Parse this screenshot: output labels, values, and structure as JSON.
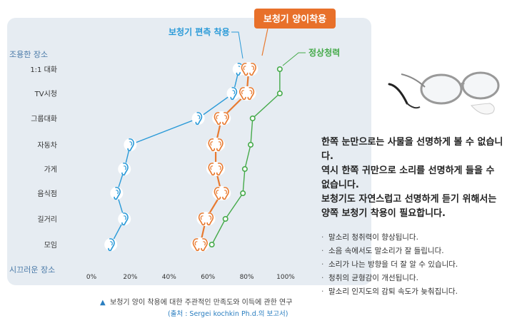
{
  "colors": {
    "panel_bg": "#e6ecf2",
    "one_ear": "#2a9ad8",
    "both_ears": "#e87a30",
    "normal": "#45aa4a",
    "label_badge": "#e8702a",
    "axis_text": "#333333",
    "end_label": "#4a7aa8"
  },
  "chart_data": {
    "type": "line",
    "ylabel_top": "조용한 장소",
    "ylabel_bottom": "시끄러운 장소",
    "categories": [
      "1:1 대화",
      "TV시청",
      "그룹대화",
      "자동차",
      "가게",
      "음식점",
      "길거리",
      "모임"
    ],
    "xticks": [
      "0%",
      "20%",
      "40%",
      "60%",
      "80%",
      "100%"
    ],
    "xlim": [
      0,
      100
    ],
    "series": [
      {
        "name": "보청기 편측 착용",
        "marker": "ear-one",
        "color": "#2a9ad8",
        "values": [
          76,
          73,
          55,
          20,
          17,
          13,
          17,
          10
        ]
      },
      {
        "name": "보청기 양이착용",
        "marker": "ear-two",
        "color": "#e87a30",
        "values": [
          81,
          80,
          67,
          64,
          64,
          67,
          59,
          56
        ]
      },
      {
        "name": "정상청력",
        "marker": "dot",
        "color": "#45aa4a",
        "values": [
          97,
          97,
          83,
          82,
          79,
          78,
          69,
          62
        ]
      }
    ]
  },
  "caption": {
    "main": "보청기 양이 착용에 대한 주관적인 만족도와 이득에 관한 연구",
    "source": "(출처 : Sergei kochkin Ph.d.의 보고서)"
  },
  "side": {
    "paragraph": "한쪽 눈만으로는 사물을 선명하게 볼 수 없습니다.\n역시 한쪽 귀만으로 소리를 선명하게 들을 수 없습니다.\n보청기도 자연스럽고 선명하게 듣기 위해서는 양쪽 보청기 착용이 필요합니다.",
    "bullets": [
      "말소리 청취력이 향상됩니다.",
      "소음 속에서도 말소리가 잘 들립니다.",
      "소리가 나는 방향을 더 잘 알 수 있습니다.",
      "청취의 균형감이 개선됩니다.",
      "말소리 인지도의 감퇴 속도가 늦춰집니다."
    ]
  }
}
